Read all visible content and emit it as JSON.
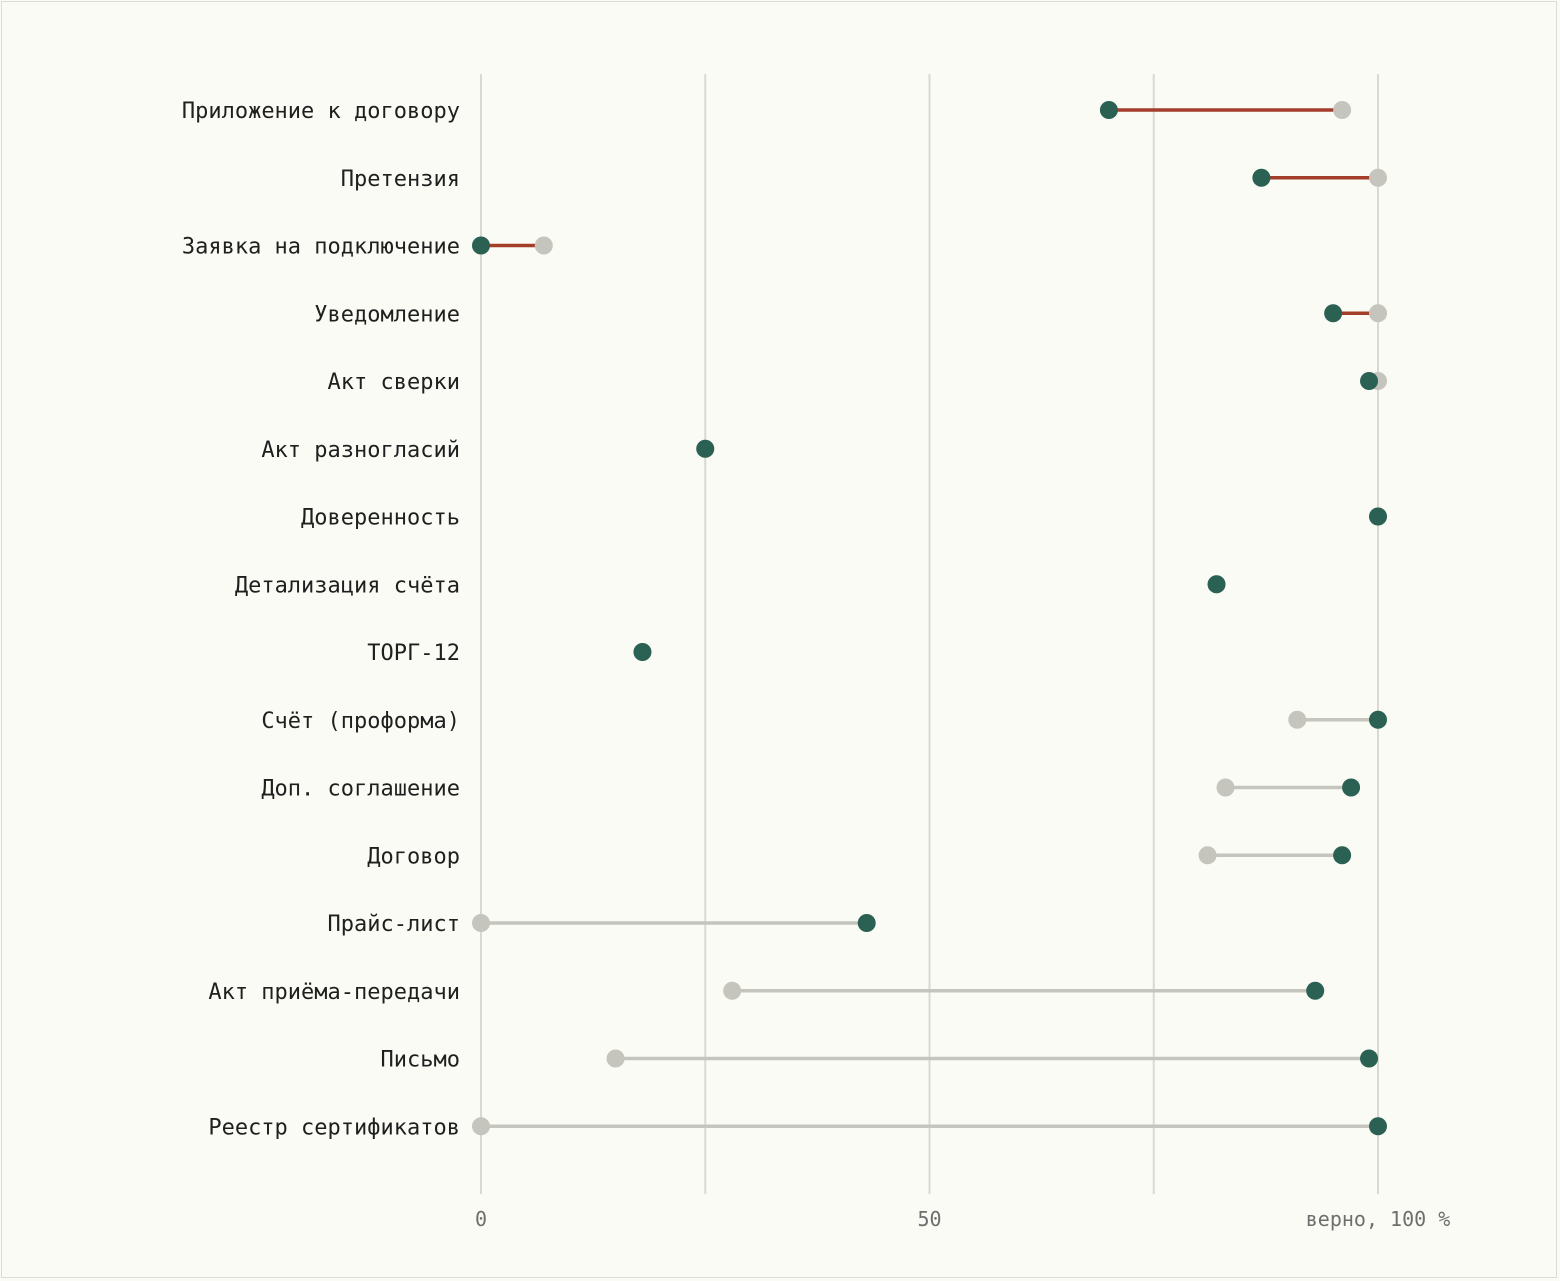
{
  "chart_data": {
    "type": "dumbbell",
    "x_tick_labels": [
      "0",
      "50",
      "верно, 100 %"
    ],
    "x_ticks": [
      0,
      50,
      100
    ],
    "xlim": [
      0,
      100
    ],
    "grid": true,
    "colors": {
      "current": "#2a6153",
      "previous": "#c5c5bd",
      "decline": "#a33e2b",
      "improve": "#c5c5bd",
      "grid": "#d9d9d2"
    },
    "rows": [
      {
        "label": "Приложение к договору",
        "previous": 96,
        "current": 70
      },
      {
        "label": "Претензия",
        "previous": 100,
        "current": 87
      },
      {
        "label": "Заявка на подключение",
        "previous": 7,
        "current": 0
      },
      {
        "label": "Уведомление",
        "previous": 100,
        "current": 95
      },
      {
        "label": "Акт сверки",
        "previous": 100,
        "current": 99
      },
      {
        "label": "Акт разногласий",
        "previous": 25,
        "current": 25
      },
      {
        "label": "Доверенность",
        "previous": 100,
        "current": 100
      },
      {
        "label": "Детализация счёта",
        "previous": 82,
        "current": 82
      },
      {
        "label": "ТОРГ-12",
        "previous": 18,
        "current": 18
      },
      {
        "label": "Счёт (проформа)",
        "previous": 91,
        "current": 100
      },
      {
        "label": "Доп. соглашение",
        "previous": 83,
        "current": 97
      },
      {
        "label": "Договор",
        "previous": 81,
        "current": 96
      },
      {
        "label": "Прайс-лист",
        "previous": 0,
        "current": 43
      },
      {
        "label": "Акт приёма-передачи",
        "previous": 28,
        "current": 93
      },
      {
        "label": "Письмо",
        "previous": 15,
        "current": 99
      },
      {
        "label": "Реестр сертификатов",
        "previous": 0,
        "current": 100
      }
    ]
  }
}
